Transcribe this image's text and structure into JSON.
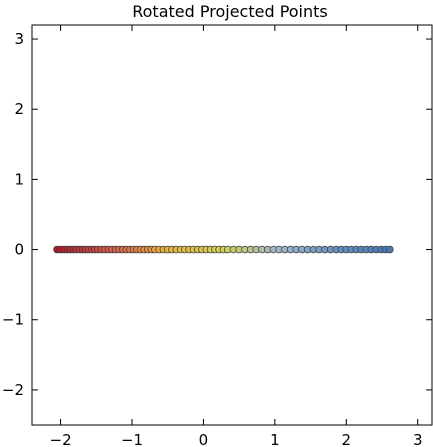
{
  "chart_data": {
    "type": "scatter",
    "title": "Rotated Projected Points",
    "xlabel": "",
    "ylabel": "",
    "xlim": [
      -2.4,
      3.2
    ],
    "ylim": [
      -2.5,
      3.2
    ],
    "x_ticks": [
      -2,
      -1,
      0,
      1,
      2,
      3
    ],
    "y_ticks": [
      -2,
      -1,
      0,
      1,
      2,
      3
    ],
    "x_tick_labels": [
      "−2",
      "−1",
      "0",
      "1",
      "2",
      "3"
    ],
    "y_tick_labels": [
      "−2",
      "−1",
      "0",
      "1",
      "2",
      "3"
    ],
    "grid": false,
    "colormap": [
      "#b2182b",
      "#d6604d",
      "#e9b53e",
      "#d1d15a",
      "#9fb7c9",
      "#6a93c4",
      "#4a78b8"
    ],
    "points": [
      {
        "x": -2.05,
        "y": 0
      },
      {
        "x": -2.0,
        "y": 0
      },
      {
        "x": -1.95,
        "y": 0
      },
      {
        "x": -1.9,
        "y": 0
      },
      {
        "x": -1.86,
        "y": 0
      },
      {
        "x": -1.82,
        "y": 0
      },
      {
        "x": -1.78,
        "y": 0
      },
      {
        "x": -1.73,
        "y": 0
      },
      {
        "x": -1.69,
        "y": 0
      },
      {
        "x": -1.65,
        "y": 0
      },
      {
        "x": -1.61,
        "y": 0
      },
      {
        "x": -1.56,
        "y": 0
      },
      {
        "x": -1.52,
        "y": 0
      },
      {
        "x": -1.48,
        "y": 0
      },
      {
        "x": -1.43,
        "y": 0
      },
      {
        "x": -1.38,
        "y": 0
      },
      {
        "x": -1.33,
        "y": 0
      },
      {
        "x": -1.28,
        "y": 0
      },
      {
        "x": -1.23,
        "y": 0
      },
      {
        "x": -1.18,
        "y": 0
      },
      {
        "x": -1.13,
        "y": 0
      },
      {
        "x": -1.08,
        "y": 0
      },
      {
        "x": -1.03,
        "y": 0
      },
      {
        "x": -0.98,
        "y": 0
      },
      {
        "x": -0.93,
        "y": 0
      },
      {
        "x": -0.88,
        "y": 0
      },
      {
        "x": -0.83,
        "y": 0
      },
      {
        "x": -0.78,
        "y": 0
      },
      {
        "x": -0.73,
        "y": 0
      },
      {
        "x": -0.68,
        "y": 0
      },
      {
        "x": -0.62,
        "y": 0
      },
      {
        "x": -0.56,
        "y": 0
      },
      {
        "x": -0.5,
        "y": 0
      },
      {
        "x": -0.44,
        "y": 0
      },
      {
        "x": -0.38,
        "y": 0
      },
      {
        "x": -0.32,
        "y": 0
      },
      {
        "x": -0.26,
        "y": 0
      },
      {
        "x": -0.2,
        "y": 0
      },
      {
        "x": -0.14,
        "y": 0
      },
      {
        "x": -0.08,
        "y": 0
      },
      {
        "x": -0.02,
        "y": 0
      },
      {
        "x": 0.04,
        "y": 0
      },
      {
        "x": 0.1,
        "y": 0
      },
      {
        "x": 0.16,
        "y": 0
      },
      {
        "x": 0.22,
        "y": 0
      },
      {
        "x": 0.28,
        "y": 0
      },
      {
        "x": 0.34,
        "y": 0
      },
      {
        "x": 0.42,
        "y": 0
      },
      {
        "x": 0.5,
        "y": 0
      },
      {
        "x": 0.58,
        "y": 0
      },
      {
        "x": 0.66,
        "y": 0
      },
      {
        "x": 0.74,
        "y": 0
      },
      {
        "x": 0.82,
        "y": 0
      },
      {
        "x": 0.9,
        "y": 0
      },
      {
        "x": 0.98,
        "y": 0
      },
      {
        "x": 1.06,
        "y": 0
      },
      {
        "x": 1.14,
        "y": 0
      },
      {
        "x": 1.22,
        "y": 0
      },
      {
        "x": 1.3,
        "y": 0
      },
      {
        "x": 1.38,
        "y": 0
      },
      {
        "x": 1.46,
        "y": 0
      },
      {
        "x": 1.54,
        "y": 0
      },
      {
        "x": 1.62,
        "y": 0
      },
      {
        "x": 1.7,
        "y": 0
      },
      {
        "x": 1.78,
        "y": 0
      },
      {
        "x": 1.86,
        "y": 0
      },
      {
        "x": 1.93,
        "y": 0
      },
      {
        "x": 2.0,
        "y": 0
      },
      {
        "x": 2.07,
        "y": 0
      },
      {
        "x": 2.14,
        "y": 0
      },
      {
        "x": 2.21,
        "y": 0
      },
      {
        "x": 2.28,
        "y": 0
      },
      {
        "x": 2.35,
        "y": 0
      },
      {
        "x": 2.42,
        "y": 0
      },
      {
        "x": 2.49,
        "y": 0
      },
      {
        "x": 2.55,
        "y": 0
      },
      {
        "x": 2.61,
        "y": 0
      }
    ]
  }
}
